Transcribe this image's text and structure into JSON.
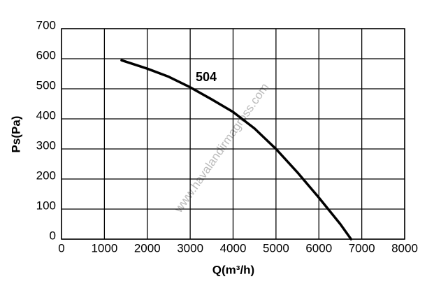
{
  "chart_data": {
    "type": "line",
    "x_label": "Q(m³/h)",
    "y_label": "Ps(Pa)",
    "annotation": "504",
    "watermark": "www.havalandirmagross.com",
    "x": [
      1400,
      2000,
      2500,
      3000,
      3500,
      4000,
      4500,
      5000,
      5500,
      6000,
      6500,
      6750
    ],
    "series": [
      {
        "name": "504",
        "color": "#000000",
        "values": [
          595,
          567,
          540,
          505,
          465,
          423,
          368,
          300,
          222,
          138,
          50,
          0
        ]
      }
    ],
    "xlim": [
      0,
      8000
    ],
    "xticks": [
      0,
      1000,
      2000,
      3000,
      4000,
      5000,
      6000,
      7000,
      8000
    ],
    "ylim": [
      0,
      700
    ],
    "yticks": [
      0,
      100,
      200,
      300,
      400,
      500,
      600,
      700
    ],
    "grid": true
  }
}
